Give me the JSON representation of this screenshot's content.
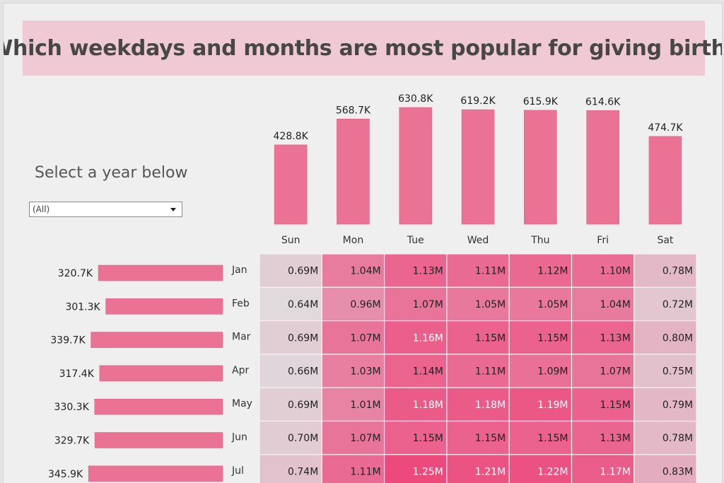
{
  "title": "Which weekdays and months are most popular for giving birth?",
  "filter": {
    "heading": "Select a year below",
    "selected": "(All)"
  },
  "colors": {
    "bar": "#ea7395",
    "title_bg": "#efc9d3",
    "cell_low": "#e0dadd",
    "cell_high": "#ec4a7d"
  },
  "chart_data": [
    {
      "type": "bar",
      "orientation": "vertical",
      "categories": [
        "Sun",
        "Mon",
        "Tue",
        "Wed",
        "Thu",
        "Fri",
        "Sat"
      ],
      "values": [
        428.8,
        568.7,
        630.8,
        619.2,
        615.9,
        614.6,
        474.7
      ],
      "labels": [
        "428.8K",
        "568.7K",
        "630.8K",
        "619.2K",
        "615.9K",
        "614.6K",
        "474.7K"
      ],
      "ylim": [
        0,
        650
      ]
    },
    {
      "type": "bar",
      "orientation": "horizontal",
      "direction": "right-to-left",
      "categories": [
        "Jan",
        "Feb",
        "Mar",
        "Apr",
        "May",
        "Jun",
        "Jul"
      ],
      "values": [
        320.7,
        301.3,
        339.7,
        317.4,
        330.3,
        329.7,
        345.9
      ],
      "labels": [
        "320.7K",
        "301.3K",
        "339.7K",
        "317.4K",
        "330.3K",
        "329.7K",
        "345.9K"
      ],
      "xlim": [
        0,
        350
      ]
    },
    {
      "type": "heatmap",
      "columns": [
        "Sun",
        "Mon",
        "Tue",
        "Wed",
        "Thu",
        "Fri",
        "Sat"
      ],
      "rows": [
        "Jan",
        "Feb",
        "Mar",
        "Apr",
        "May",
        "Jun",
        "Jul"
      ],
      "values": [
        [
          0.69,
          1.04,
          1.13,
          1.11,
          1.12,
          1.1,
          0.78
        ],
        [
          0.64,
          0.96,
          1.07,
          1.05,
          1.05,
          1.04,
          0.72
        ],
        [
          0.69,
          1.07,
          1.16,
          1.15,
          1.15,
          1.13,
          0.8
        ],
        [
          0.66,
          1.03,
          1.14,
          1.11,
          1.09,
          1.07,
          0.75
        ],
        [
          0.69,
          1.01,
          1.18,
          1.18,
          1.19,
          1.15,
          0.79
        ],
        [
          0.7,
          1.07,
          1.15,
          1.15,
          1.15,
          1.13,
          0.78
        ],
        [
          0.74,
          1.11,
          1.25,
          1.21,
          1.22,
          1.17,
          0.83
        ]
      ],
      "labels": [
        [
          "0.69M",
          "1.04M",
          "1.13M",
          "1.11M",
          "1.12M",
          "1.10M",
          "0.78M"
        ],
        [
          "0.64M",
          "0.96M",
          "1.07M",
          "1.05M",
          "1.05M",
          "1.04M",
          "0.72M"
        ],
        [
          "0.69M",
          "1.07M",
          "1.16M",
          "1.15M",
          "1.15M",
          "1.13M",
          "0.80M"
        ],
        [
          "0.66M",
          "1.03M",
          "1.14M",
          "1.11M",
          "1.09M",
          "1.07M",
          "0.75M"
        ],
        [
          "0.69M",
          "1.01M",
          "1.18M",
          "1.18M",
          "1.19M",
          "1.15M",
          "0.79M"
        ],
        [
          "0.70M",
          "1.07M",
          "1.15M",
          "1.15M",
          "1.15M",
          "1.13M",
          "0.78M"
        ],
        [
          "0.74M",
          "1.11M",
          "1.25M",
          "1.21M",
          "1.22M",
          "1.17M",
          "0.83M"
        ]
      ],
      "color_range": [
        0.64,
        1.25
      ]
    }
  ]
}
